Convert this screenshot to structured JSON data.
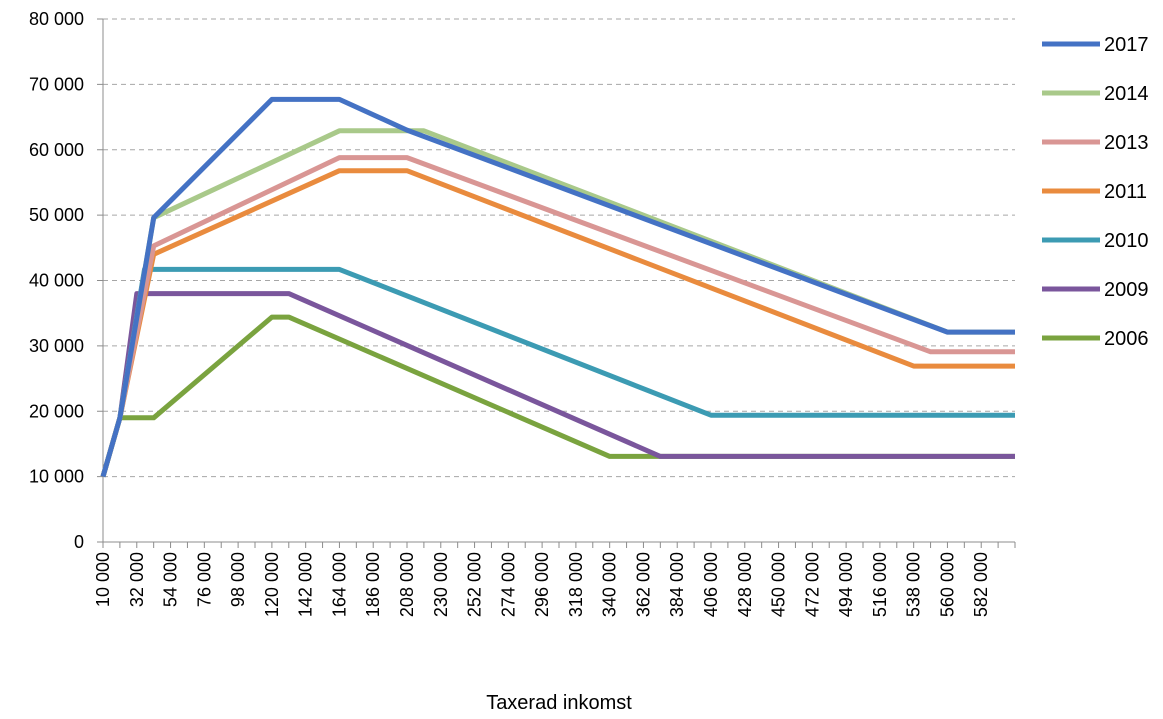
{
  "chart_data": {
    "type": "line",
    "title": "",
    "xlabel": "Taxerad inkomst",
    "ylabel": "",
    "ylim": [
      0,
      80000
    ],
    "y_ticks": [
      0,
      10000,
      20000,
      30000,
      40000,
      50000,
      60000,
      70000,
      80000
    ],
    "y_tick_labels": [
      "0",
      "10 000",
      "20 000",
      "30 000",
      "40 000",
      "50 000",
      "60 000",
      "70 000",
      "80 000"
    ],
    "x_range": [
      10000,
      604000
    ],
    "x_tick_labels": [
      "10 000",
      "32 000",
      "54 000",
      "76 000",
      "98 000",
      "120 000",
      "142 000",
      "164 000",
      "186 000",
      "208 000",
      "230 000",
      "252 000",
      "274 000",
      "296 000",
      "318 000",
      "340 000",
      "362 000",
      "384 000",
      "406 000",
      "428 000",
      "450 000",
      "472 000",
      "494 000",
      "516 000",
      "538 000",
      "560 000",
      "582 000"
    ],
    "grid": "horizontal dashed",
    "legend_position": "right",
    "series": [
      {
        "name": "2017",
        "color": "#4472c4",
        "x": [
          10000,
          21000,
          43000,
          120000,
          164000,
          208000,
          560000,
          604000
        ],
        "values": [
          10000,
          19000,
          49600,
          67700,
          67700,
          63000,
          32100,
          32100
        ]
      },
      {
        "name": "2014",
        "color": "#a9c98a",
        "x": [
          10000,
          21000,
          43000,
          164000,
          219000,
          560000,
          604000
        ],
        "values": [
          10000,
          19000,
          49600,
          62900,
          62900,
          32100,
          32100
        ]
      },
      {
        "name": "2013",
        "color": "#d99694",
        "x": [
          10000,
          21000,
          43000,
          164000,
          208000,
          549000,
          604000
        ],
        "values": [
          10000,
          19000,
          45300,
          58800,
          58800,
          29100,
          29100
        ]
      },
      {
        "name": "2011",
        "color": "#e98b3e",
        "x": [
          10000,
          21000,
          43000,
          164000,
          208000,
          538000,
          604000
        ],
        "values": [
          10000,
          19000,
          44000,
          56800,
          56800,
          26900,
          26900
        ]
      },
      {
        "name": "2010",
        "color": "#3c9bb3",
        "x": [
          10000,
          21000,
          37000,
          164000,
          406000,
          604000
        ],
        "values": [
          10000,
          19000,
          41700,
          41700,
          19400,
          19400
        ]
      },
      {
        "name": "2009",
        "color": "#7a569c",
        "x": [
          10000,
          21000,
          32000,
          131000,
          373000,
          604000
        ],
        "values": [
          10000,
          19000,
          38000,
          38000,
          13100,
          13100
        ]
      },
      {
        "name": "2006",
        "color": "#7aa33f",
        "x": [
          10000,
          21000,
          43000,
          120000,
          131000,
          340000,
          604000
        ],
        "values": [
          10000,
          19000,
          19000,
          34400,
          34400,
          13100,
          13100
        ]
      }
    ]
  }
}
